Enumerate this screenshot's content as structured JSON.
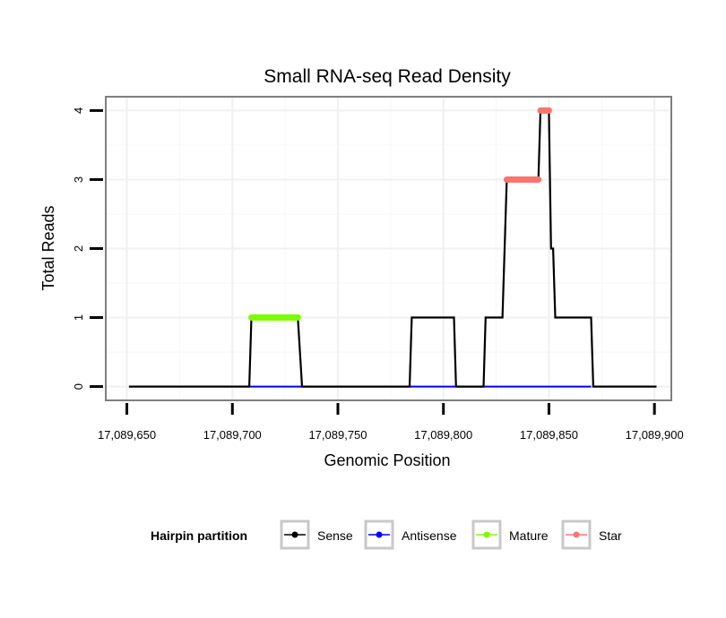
{
  "chart_data": {
    "type": "line",
    "title": "Small RNA-seq Read Density",
    "xlabel": "Genomic Position",
    "ylabel": "Total Reads",
    "xlim": [
      17089640,
      17089908
    ],
    "ylim": [
      -0.2,
      4.2
    ],
    "x_ticks": [
      17089650,
      17089700,
      17089750,
      17089800,
      17089850,
      17089900
    ],
    "x_tick_labels": [
      "17,089,650",
      "17,089,700",
      "17,089,750",
      "17,089,800",
      "17,089,850",
      "17,089,900"
    ],
    "y_ticks": [
      0,
      1,
      2,
      3,
      4
    ],
    "y_tick_labels": [
      "0",
      "1",
      "2",
      "3",
      "4"
    ],
    "grid": true,
    "legend": {
      "title": "Hairpin partition",
      "position": "bottom",
      "entries": [
        {
          "label": "Sense",
          "color": "#000000"
        },
        {
          "label": "Antisense",
          "color": "#0000ff"
        },
        {
          "label": "Mature",
          "color": "#7cfc00"
        },
        {
          "label": "Star",
          "color": "#f8766d"
        }
      ]
    },
    "series": [
      {
        "name": "Sense",
        "color": "#000000",
        "style": "line",
        "x": [
          17089651,
          17089708,
          17089709,
          17089731,
          17089733,
          17089784,
          17089785,
          17089805,
          17089806,
          17089819,
          17089820,
          17089828,
          17089830,
          17089845,
          17089846,
          17089850,
          17089851,
          17089852,
          17089853,
          17089870,
          17089871,
          17089901
        ],
        "y": [
          0,
          0,
          1,
          1,
          0,
          0,
          1,
          1,
          0,
          0,
          1,
          1,
          3,
          3,
          4,
          4,
          2,
          2,
          1,
          1,
          0,
          0
        ]
      },
      {
        "name": "Antisense",
        "color": "#0000ff",
        "style": "line",
        "x": [
          17089708,
          17089870
        ],
        "y": [
          0,
          0
        ]
      },
      {
        "name": "Mature",
        "color": "#7cfc00",
        "style": "thick",
        "x": [
          17089709,
          17089731
        ],
        "y": [
          1,
          1
        ]
      },
      {
        "name": "Star",
        "color": "#f8766d",
        "style": "thick",
        "segments": [
          {
            "x": [
              17089830,
              17089845
            ],
            "y": [
              3,
              3
            ]
          },
          {
            "x": [
              17089846,
              17089850
            ],
            "y": [
              4,
              4
            ]
          }
        ]
      }
    ]
  }
}
